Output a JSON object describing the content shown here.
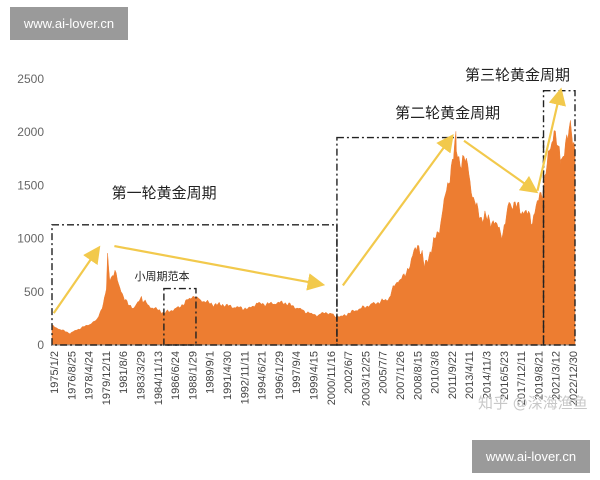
{
  "watermarks": {
    "top": "www.ai-lover.cn",
    "bottom": "www.ai-lover.cn",
    "attribution": "知乎 @深海渔鱼"
  },
  "colors": {
    "area": "#ed7d31",
    "arrow": "#f2c94c",
    "box": "#222222",
    "watermark_bg": "#9a9a9a"
  },
  "chart_data": {
    "type": "area",
    "title": "",
    "xlabel": "",
    "ylabel": "",
    "ylim": [
      0,
      2500
    ],
    "yticks": [
      0,
      500,
      1000,
      1500,
      2000,
      2500
    ],
    "x_range": [
      "1975/1/2",
      "2022/6/30"
    ],
    "xticks": [
      "1975/1/2",
      "1976/8/25",
      "1978/4/24",
      "1979/12/11",
      "1981/8/6",
      "1983/3/29",
      "1984/11/13",
      "1986/6/24",
      "1988/1/29",
      "1989/9/1",
      "1991/4/30",
      "1992/11/11",
      "1994/6/21",
      "1996/1/29",
      "1997/9/4",
      "1999/4/15",
      "2000/11/16",
      "2002/6/7",
      "2003/12/25",
      "2005/7/7",
      "2007/1/26",
      "2008/8/15",
      "2010/3/8",
      "2011/9/22",
      "2013/4/11",
      "2014/11/3",
      "2016/5/23",
      "2017/12/11",
      "2019/8/21",
      "2021/3/12",
      "2022/12/30"
    ],
    "series": [
      {
        "x": [
          "1975/1/2",
          "1975/9/1",
          "1976/8/25",
          "1977/6/1",
          "1978/4/24",
          "1979/1/15",
          "1979/9/1",
          "1979/12/11",
          "1980/1/21",
          "1980/4/1",
          "1980/9/20",
          "1981/8/6",
          "1982/6/21",
          "1983/2/15",
          "1983/3/29",
          "1983/12/1",
          "1984/11/13",
          "1985/3/1",
          "1986/6/24",
          "1987/12/1",
          "1988/1/29",
          "1989/9/1",
          "1990/7/1",
          "1991/4/30",
          "1992/11/11",
          "1993/7/30",
          "1994/6/21",
          "1996/1/29",
          "1997/9/4",
          "1998/8/1",
          "1999/4/15",
          "1999/10/1",
          "2000/11/16",
          "2001/4/1",
          "2002/6/7",
          "2003/12/25",
          "2005/7/7",
          "2006/5/1",
          "2007/1/26",
          "2008/3/17",
          "2008/8/15",
          "2008/10/24",
          "2010/3/8",
          "2011/9/6",
          "2011/9/22",
          "2012/10/1",
          "2013/4/11",
          "2013/12/31",
          "2014/11/3",
          "2015/12/17",
          "2016/5/23",
          "2016/7/6",
          "2017/12/11",
          "2018/8/16",
          "2019/8/21",
          "2020/8/7",
          "2021/3/8",
          "2021/3/12",
          "2022/3/8",
          "2022/6/30"
        ],
        "values": [
          180,
          150,
          110,
          150,
          190,
          230,
          380,
          520,
          850,
          620,
          680,
          420,
          340,
          460,
          420,
          360,
          320,
          300,
          350,
          470,
          440,
          380,
          380,
          360,
          340,
          390,
          385,
          400,
          330,
          290,
          280,
          310,
          270,
          265,
          320,
          380,
          430,
          600,
          650,
          950,
          850,
          730,
          1100,
          1900,
          1780,
          1700,
          1350,
          1200,
          1180,
          1050,
          1250,
          1350,
          1250,
          1180,
          1500,
          2050,
          1700,
          1750,
          2050,
          1820
        ]
      }
    ],
    "annotations": {
      "cycles": [
        "第一轮黄金周期",
        "第二轮黄金周期",
        "第三轮黄金周期"
      ],
      "small_cycle": "小周期范本"
    }
  }
}
